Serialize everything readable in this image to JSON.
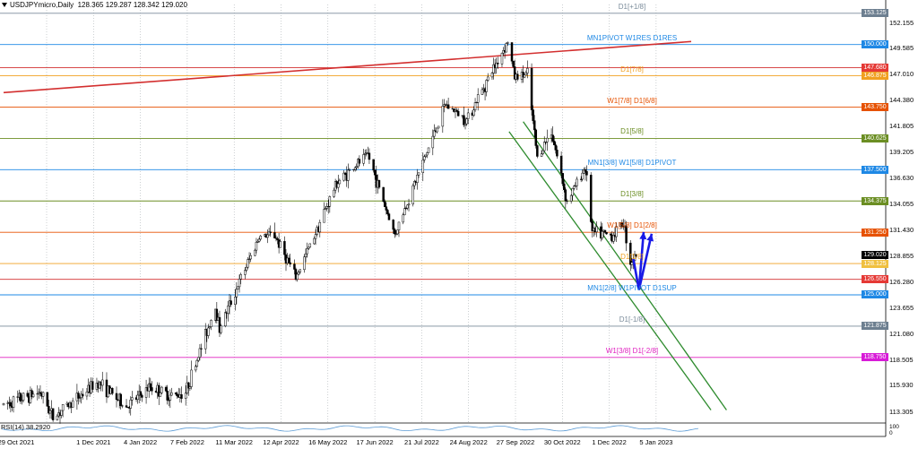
{
  "header": {
    "symbol": "USDJPYmicro,Daily",
    "ohlc": "128.365 129.287 128.342 129.020"
  },
  "chart_data": {
    "type": "candlestick",
    "y_range": [
      112.2,
      154.0
    ],
    "y_ticks": [
      "152.155",
      "149.585",
      "147.010",
      "144.380",
      "141.805",
      "139.205",
      "136.630",
      "134.055",
      "131.430",
      "128.855",
      "126.280",
      "123.655",
      "121.080",
      "118.505",
      "115.930",
      "113.305"
    ],
    "x_start": "2021-10-29",
    "x_ticks": [
      "29 Oct 2021",
      "1 Dec 2021",
      "4 Jan 2022",
      "7 Feb 2022",
      "11 Mar 2022",
      "12 Apr 2022",
      "16 May 2022",
      "17 Jun 2022",
      "21 Jul 2022",
      "24 Aug 2022",
      "27 Sep 2022",
      "30 Oct 2022",
      "1 Dec 2022",
      "5 Jan 2023"
    ],
    "current_price": "129.020",
    "key_closes": [
      {
        "date": "2021-10-29",
        "close": 114.0
      },
      {
        "date": "2021-11-24",
        "close": 115.3
      },
      {
        "date": "2021-12-03",
        "close": 112.8
      },
      {
        "date": "2022-01-04",
        "close": 116.3
      },
      {
        "date": "2022-01-24",
        "close": 113.8
      },
      {
        "date": "2022-02-10",
        "close": 115.8
      },
      {
        "date": "2022-02-24",
        "close": 114.9
      },
      {
        "date": "2022-03-07",
        "close": 115.3
      },
      {
        "date": "2022-03-28",
        "close": 123.8
      },
      {
        "date": "2022-03-31",
        "close": 121.7
      },
      {
        "date": "2022-04-28",
        "close": 130.8
      },
      {
        "date": "2022-05-09",
        "close": 131.0
      },
      {
        "date": "2022-05-24",
        "close": 126.7
      },
      {
        "date": "2022-06-22",
        "close": 136.2
      },
      {
        "date": "2022-07-14",
        "close": 139.0
      },
      {
        "date": "2022-08-02",
        "close": 131.0
      },
      {
        "date": "2022-09-07",
        "close": 144.0
      },
      {
        "date": "2022-09-22",
        "close": 142.5
      },
      {
        "date": "2022-10-21",
        "close": 150.3
      },
      {
        "date": "2022-10-26",
        "close": 146.8
      },
      {
        "date": "2022-11-04",
        "close": 147.0
      },
      {
        "date": "2022-11-11",
        "close": 138.7
      },
      {
        "date": "2022-11-21",
        "close": 141.4
      },
      {
        "date": "2022-12-02",
        "close": 134.3
      },
      {
        "date": "2022-12-15",
        "close": 137.8
      },
      {
        "date": "2022-12-20",
        "close": 131.2
      },
      {
        "date": "2023-01-03",
        "close": 130.9
      },
      {
        "date": "2023-01-11",
        "close": 132.3
      },
      {
        "date": "2023-01-16",
        "close": 128.3
      },
      {
        "date": "2023-01-20",
        "close": 129.0
      }
    ],
    "levels": [
      {
        "price": 153.125,
        "label": "D1[+1/8]",
        "tag": "153.125",
        "color": "#7a8b9a",
        "tagColor": "#6d7f90"
      },
      {
        "price": 150.0,
        "label": "MN1PIVOT W1RES D1RES",
        "tag": "150.000",
        "color": "#1e88e5",
        "tagColor": "#1e88e5"
      },
      {
        "price": 147.68,
        "label": "",
        "tag": "147.680",
        "color": "#d32f2f",
        "tagColor": "#e53935"
      },
      {
        "price": 146.875,
        "label": "D1[7/8]",
        "tag": "146.875",
        "color": "#f0a020",
        "tagColor": "#f0a020"
      },
      {
        "price": 143.75,
        "label": "W1[7/8] D1[6/8]",
        "tag": "143.750",
        "color": "#e65100",
        "tagColor": "#e65100"
      },
      {
        "price": 140.625,
        "label": "D1[5/8]",
        "tag": "140.625",
        "color": "#6b8e23",
        "tagColor": "#6b8e23"
      },
      {
        "price": 137.5,
        "label": "MN1[3/8] W1[5/8] D1PIVOT",
        "tag": "137.500",
        "color": "#1e88e5",
        "tagColor": "#1e88e5"
      },
      {
        "price": 134.375,
        "label": "D1[3/8]",
        "tag": "134.375",
        "color": "#6b8e23",
        "tagColor": "#6b8e23"
      },
      {
        "price": 131.25,
        "label": "W1[5/8] D1[2/8]",
        "tag": "131.250",
        "color": "#e65100",
        "tagColor": "#e65100"
      },
      {
        "price": 128.125,
        "label": "D1[1/8]",
        "tag": "128.125",
        "color": "#f0a020",
        "tagColor": "#f0c040"
      },
      {
        "price": 126.55,
        "label": "",
        "tag": "126.550",
        "color": "#d32f2f",
        "tagColor": "#e53935"
      },
      {
        "price": 125.0,
        "label": "MN1[2/8] W1PIVOT D1SUP",
        "tag": "125.000",
        "color": "#1e88e5",
        "tagColor": "#1e88e5"
      },
      {
        "price": 121.875,
        "label": "D1[-1/8]",
        "tag": "121.875",
        "color": "#7a8b9a",
        "tagColor": "#6d7f90"
      },
      {
        "price": 118.75,
        "label": "W1[3/8] D1[-2/8]",
        "tag": "118.750",
        "color": "#e020c0",
        "tagColor": "#d81bd8"
      }
    ],
    "trend_line": {
      "from": {
        "date": "2021-10-29",
        "price": 145.2
      },
      "to": {
        "date": "2023-02-28",
        "price": 150.3
      },
      "color": "#d32f2f"
    },
    "channel": {
      "upper": {
        "from": {
          "date": "2022-11-01",
          "price": 142.3
        },
        "to": {
          "date": "2023-03-25",
          "price": 113.5
        }
      },
      "lower": {
        "from": {
          "date": "2022-10-22",
          "price": 141.3
        },
        "to": {
          "date": "2023-03-14",
          "price": 113.5
        }
      },
      "color": "#2e8b2e"
    },
    "projection": {
      "points": [
        {
          "date": "2023-01-18",
          "price": 128.6
        },
        {
          "date": "2023-01-22",
          "price": 125.5
        },
        {
          "date": "2023-01-31",
          "price": 131.1
        }
      ],
      "color": "#1a1ae6"
    },
    "rsi": {
      "label": "RSI(14) 38.2920",
      "ticks": [
        "100",
        "0"
      ],
      "color": "#5b9bd5"
    }
  }
}
